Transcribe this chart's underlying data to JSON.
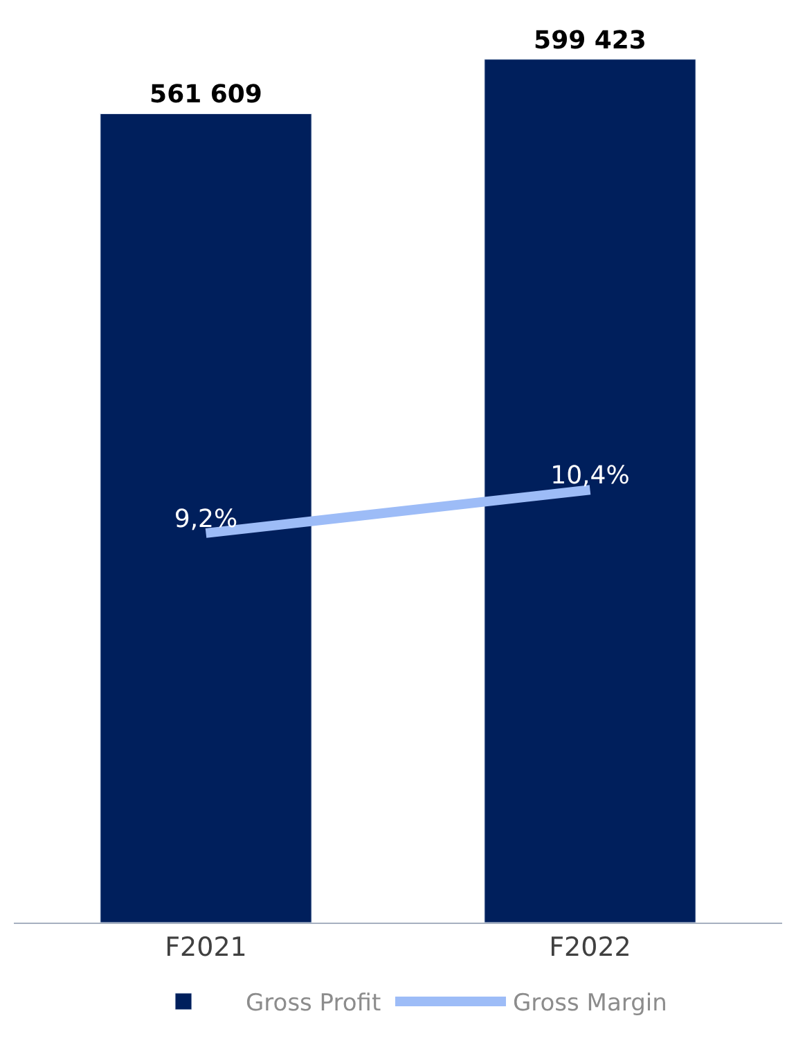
{
  "chart_data": {
    "type": "bar",
    "categories": [
      "F2021",
      "F2022"
    ],
    "series": [
      {
        "name": "Gross Profit",
        "color": "#001f5c",
        "values": [
          561609,
          599423
        ],
        "value_labels": [
          "561 609",
          "599 423"
        ]
      },
      {
        "name": "Gross Margin",
        "type": "line",
        "axis": "y2",
        "color": "#9dbcf7",
        "values": [
          9.2,
          10.4
        ],
        "value_labels": [
          "9,2%",
          "10,4%"
        ]
      }
    ],
    "tick_labels": "x",
    "legend": "bottom",
    "marker": "none"
  }
}
